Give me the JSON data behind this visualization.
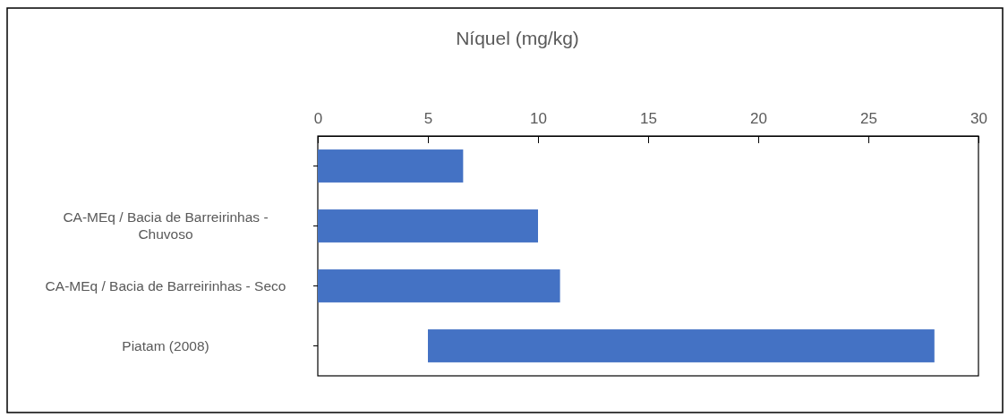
{
  "chart_data": {
    "type": "bar",
    "title": "Níquel (mg/kg)",
    "orientation": "horizontal",
    "categories": [
      null,
      "CA-MEq / Bacia de Barreirinhas - Chuvoso",
      "CA-MEq / Bacia de Barreirinhas - Seco",
      "Piatam (2008)"
    ],
    "values": [
      6.6,
      10,
      11,
      23
    ],
    "base": [
      0,
      0,
      0,
      5
    ],
    "color": "#4472c4",
    "xlim": [
      0,
      30
    ],
    "xticks": [
      0,
      5,
      10,
      15,
      20,
      25,
      30
    ],
    "grid": false
  }
}
